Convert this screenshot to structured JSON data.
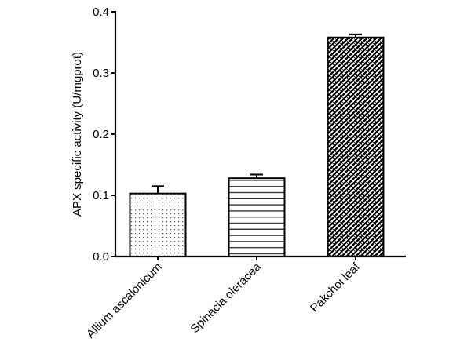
{
  "chart_data": {
    "type": "bar",
    "title": "",
    "xlabel": "",
    "ylabel": "APX specific activity (U/mgprot)",
    "ylim": [
      0,
      0.4
    ],
    "yticks": [
      0.0,
      0.1,
      0.2,
      0.3,
      0.4
    ],
    "ytick_labels": [
      "0.0",
      "0.1",
      "0.2",
      "0.3",
      "0.4"
    ],
    "categories": [
      "Allium ascalonicum",
      "Spinacia oleracea",
      "Pakchoi leaf"
    ],
    "values": [
      0.103,
      0.128,
      0.358
    ],
    "errors": [
      0.012,
      0.006,
      0.005
    ],
    "fill_patterns": [
      "dots",
      "horizontal-lines",
      "crosshatch-diagonal"
    ],
    "grid": false,
    "legend": null
  }
}
